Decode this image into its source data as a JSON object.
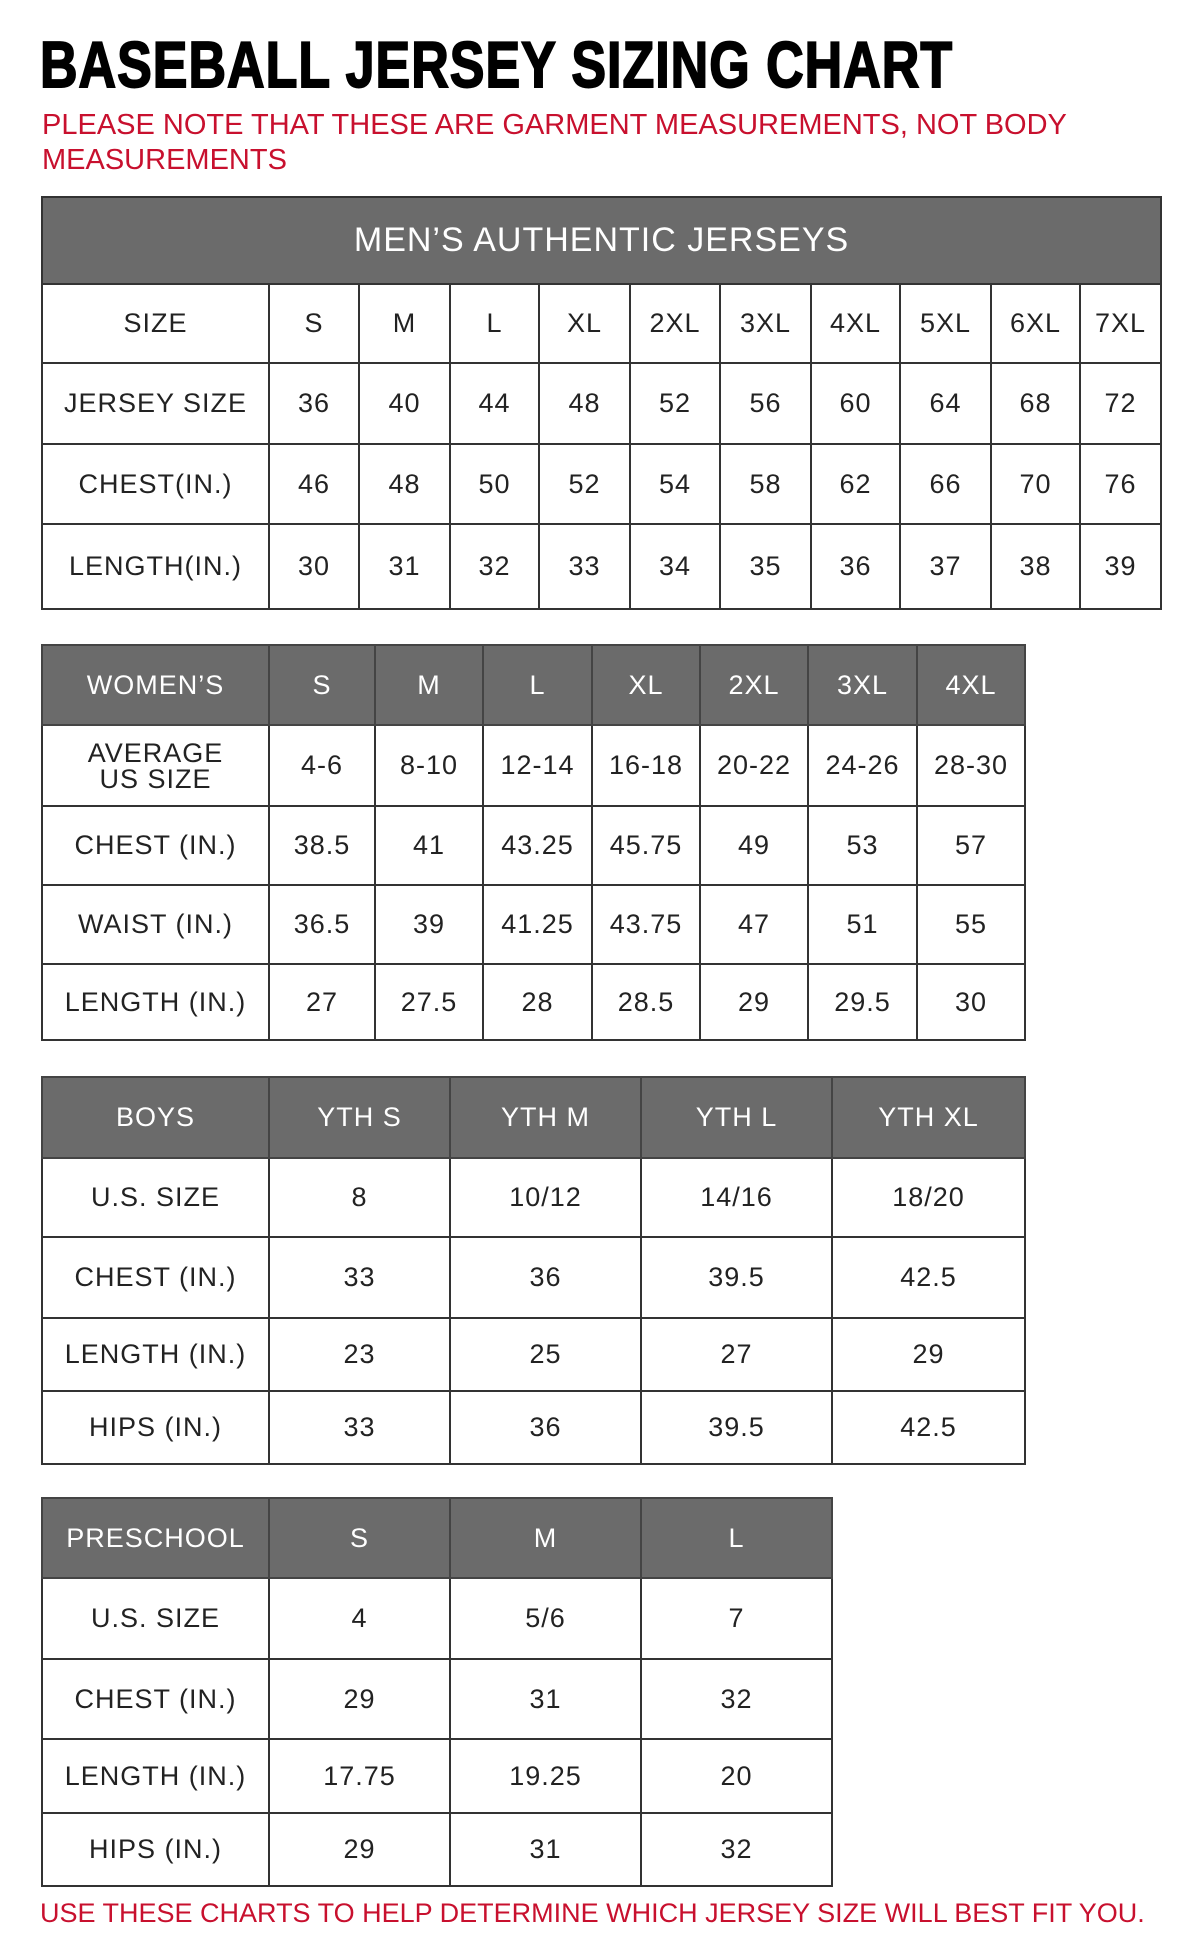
{
  "title": "BASEBALL JERSEY SIZING CHART",
  "note": "PLEASE NOTE THAT THESE ARE GARMENT MEASUREMENTS, NOT BODY MEASUREMENTS",
  "footer": "USE THESE CHARTS TO HELP DETERMINE WHICH JERSEY SIZE WILL BEST FIT YOU.",
  "colors": {
    "header_gray": "#6b6b6b",
    "note_red": "#c8102e"
  },
  "tables": [
    {
      "id": "mens",
      "caption": "MEN’S AUTHENTIC JERSEYS",
      "header": [
        "SIZE",
        "S",
        "M",
        "L",
        "XL",
        "2XL",
        "3XL",
        "4XL",
        "5XL",
        "6XL",
        "7XL"
      ],
      "header_gray": false,
      "rows": [
        [
          "JERSEY SIZE",
          "36",
          "40",
          "44",
          "48",
          "52",
          "56",
          "60",
          "64",
          "68",
          "72"
        ],
        [
          "CHEST(IN.)",
          "46",
          "48",
          "50",
          "52",
          "54",
          "58",
          "62",
          "66",
          "70",
          "76"
        ],
        [
          "LENGTH(IN.)",
          "30",
          "31",
          "32",
          "33",
          "34",
          "35",
          "36",
          "37",
          "38",
          "39"
        ]
      ]
    },
    {
      "id": "womens",
      "header": [
        "WOMEN’S",
        "S",
        "M",
        "L",
        "XL",
        "2XL",
        "3XL",
        "4XL"
      ],
      "header_gray": true,
      "rows": [
        [
          "AVERAGE US SIZE",
          "4-6",
          "8-10",
          "12-14",
          "16-18",
          "20-22",
          "24-26",
          "28-30"
        ],
        [
          "CHEST (IN.)",
          "38.5",
          "41",
          "43.25",
          "45.75",
          "49",
          "53",
          "57"
        ],
        [
          "WAIST (IN.)",
          "36.5",
          "39",
          "41.25",
          "43.75",
          "47",
          "51",
          "55"
        ],
        [
          "LENGTH (IN.)",
          "27",
          "27.5",
          "28",
          "28.5",
          "29",
          "29.5",
          "30"
        ]
      ]
    },
    {
      "id": "boys",
      "header": [
        "BOYS",
        "YTH S",
        "YTH M",
        "YTH L",
        "YTH XL"
      ],
      "header_gray": true,
      "rows": [
        [
          "U.S. SIZE",
          "8",
          "10/12",
          "14/16",
          "18/20"
        ],
        [
          "CHEST (IN.)",
          "33",
          "36",
          "39.5",
          "42.5"
        ],
        [
          "LENGTH (IN.)",
          "23",
          "25",
          "27",
          "29"
        ],
        [
          "HIPS (IN.)",
          "33",
          "36",
          "39.5",
          "42.5"
        ]
      ]
    },
    {
      "id": "preschool",
      "header": [
        "PRESCHOOL",
        "S",
        "M",
        "L"
      ],
      "header_gray": true,
      "rows": [
        [
          "U.S. SIZE",
          "4",
          "5/6",
          "7"
        ],
        [
          "CHEST (IN.)",
          "29",
          "31",
          "32"
        ],
        [
          "LENGTH (IN.)",
          "17.75",
          "19.25",
          "20"
        ],
        [
          "HIPS (IN.)",
          "29",
          "31",
          "32"
        ]
      ]
    }
  ]
}
